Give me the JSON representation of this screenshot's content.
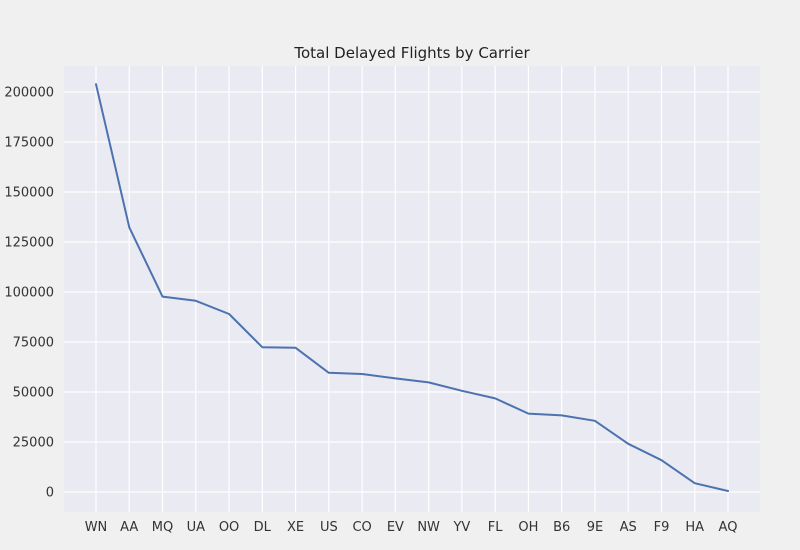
{
  "chart_data": {
    "type": "line",
    "title": "Total Delayed Flights by Carrier",
    "xlabel": "",
    "ylabel": "",
    "categories": [
      "WN",
      "AA",
      "MQ",
      "UA",
      "OO",
      "DL",
      "XE",
      "US",
      "CO",
      "EV",
      "NW",
      "YV",
      "FL",
      "OH",
      "B6",
      "9E",
      "AS",
      "F9",
      "HA",
      "AQ"
    ],
    "series": [
      {
        "values": [
          203900,
          132300,
          97700,
          95600,
          89000,
          72400,
          72100,
          59600,
          59000,
          56800,
          54800,
          50600,
          46800,
          39200,
          38300,
          35600,
          24100,
          15900,
          4400,
          500
        ]
      }
    ],
    "ylim": [
      -10000,
      213000
    ],
    "yticks": [
      0,
      25000,
      50000,
      75000,
      100000,
      125000,
      150000,
      175000,
      200000
    ],
    "grid": true,
    "legend": "none",
    "colors": {
      "line": "#4c72b0",
      "plot_background": "#eaeaf2",
      "grid": "#ffffff",
      "page_background": "#f0f0f0"
    }
  }
}
